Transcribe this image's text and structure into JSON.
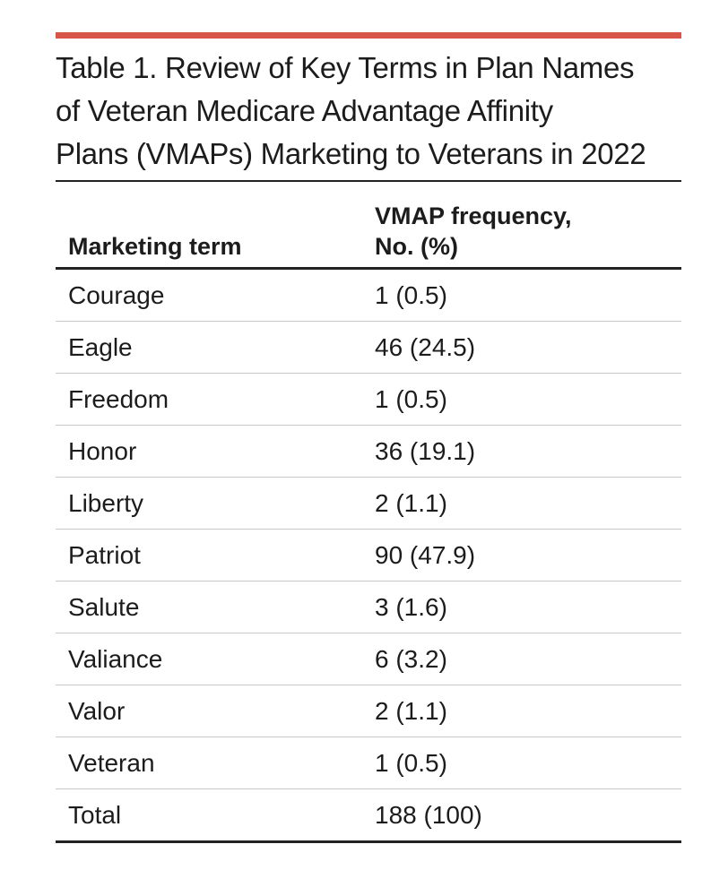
{
  "table": {
    "title_lines": [
      "Table 1. Review of Key Terms in Plan Names",
      "of Veteran Medicare Advantage Affinity",
      "Plans (VMAPs) Marketing to Veterans in 2022"
    ],
    "headers": {
      "term": "Marketing term",
      "freq_lines": [
        "VMAP frequency,",
        "No. (%)"
      ]
    },
    "rows": [
      {
        "term": "Courage",
        "freq": "1 (0.5)"
      },
      {
        "term": "Eagle",
        "freq": "46 (24.5)"
      },
      {
        "term": "Freedom",
        "freq": "1 (0.5)"
      },
      {
        "term": "Honor",
        "freq": "36 (19.1)"
      },
      {
        "term": "Liberty",
        "freq": "2 (1.1)"
      },
      {
        "term": "Patriot",
        "freq": "90 (47.9)"
      },
      {
        "term": "Salute",
        "freq": "3 (1.6)"
      },
      {
        "term": "Valiance",
        "freq": "6 (3.2)"
      },
      {
        "term": "Valor",
        "freq": "2 (1.1)"
      },
      {
        "term": "Veteran",
        "freq": "1 (0.5)"
      },
      {
        "term": "Total",
        "freq": "188 (100)"
      }
    ]
  },
  "colors": {
    "accent": "#d8554a",
    "text": "#1c1c1c",
    "rule": "#222222",
    "row_divider": "#c8c8c8"
  }
}
